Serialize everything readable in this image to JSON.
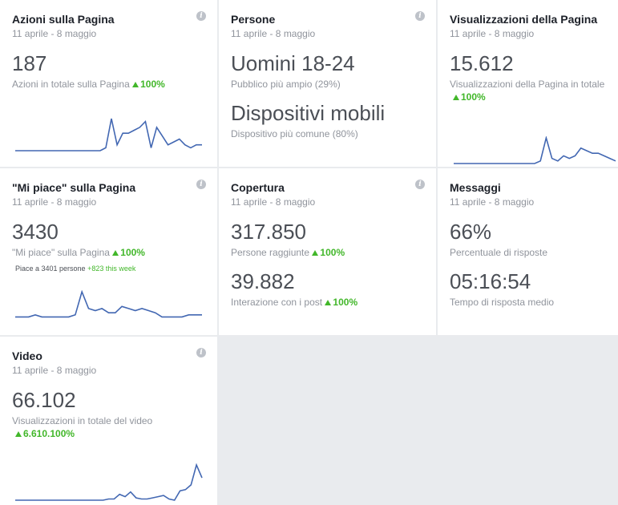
{
  "colors": {
    "accent": "#4267b2",
    "positive": "#42b72a",
    "muted": "#90949c",
    "background": "#e9ebee"
  },
  "cards": {
    "azioni": {
      "title": "Azioni sulla Pagina",
      "date": "11 aprile - 8 maggio",
      "value": "187",
      "label": "Azioni in totale sulla Pagina",
      "change": "100%",
      "icon": "info-icon",
      "sparkline": [
        0,
        0,
        0,
        0,
        0,
        0,
        0,
        0,
        0,
        0,
        0,
        0,
        0,
        0,
        0,
        0,
        1,
        11,
        2,
        6,
        6,
        7,
        8,
        10,
        1,
        8,
        5,
        2,
        3,
        4,
        2,
        1,
        2,
        2
      ]
    },
    "persone": {
      "title": "Persone",
      "date": "11 aprile - 8 maggio",
      "value1": "Uomini 18-24",
      "label1": "Pubblico più ampio (29%)",
      "value2": "Dispositivi mobili",
      "label2": "Dispositivo più comune (80%)",
      "icon": "info-icon"
    },
    "visualizzazioni": {
      "title": "Visualizzazioni della Pagina",
      "date": "11 aprile - 8 maggio",
      "value": "15.612",
      "label": "Visualizzazioni della Pagina in totale",
      "change": "100%",
      "sparkline": [
        0,
        0,
        0,
        0,
        0,
        0,
        0,
        0,
        0,
        0,
        0,
        0,
        0,
        0,
        0,
        1,
        10,
        2,
        1,
        3,
        2,
        3,
        6,
        5,
        4,
        4,
        3,
        2,
        1
      ]
    },
    "mipiace": {
      "title": "\"Mi piace\" sulla Pagina",
      "date": "11 aprile - 8 maggio",
      "value": "3430",
      "label": "\"Mi piace\" sulla Pagina",
      "change": "100%",
      "note": "Piace a 3401 persone",
      "note_week": "+823 this week",
      "icon": "info-icon",
      "sparkline": [
        1,
        1,
        1,
        2,
        1,
        1,
        1,
        1,
        1,
        2,
        13,
        5,
        4,
        5,
        3,
        3,
        6,
        5,
        4,
        5,
        4,
        3,
        1,
        1,
        1,
        1,
        2,
        2,
        2
      ]
    },
    "copertura": {
      "title": "Copertura",
      "date": "11 aprile - 8 maggio",
      "value1": "317.850",
      "label1": "Persone raggiunte",
      "change1": "100%",
      "value2": "39.882",
      "label2": "Interazione con i post",
      "change2": "100%",
      "icon": "info-icon"
    },
    "messaggi": {
      "title": "Messaggi",
      "date": "11 aprile - 8 maggio",
      "value1": "66%",
      "label1": "Percentuale di risposte",
      "value2": "05:16:54",
      "label2": "Tempo di risposta medio"
    },
    "video": {
      "title": "Video",
      "date": "11 aprile - 8 maggio",
      "value": "66.102",
      "label": "Visualizzazioni in totale del video",
      "change": "6.610.100%",
      "icon": "info-icon",
      "sparkline": [
        0,
        0,
        0,
        0,
        0,
        0,
        0,
        0,
        0,
        0,
        0,
        0,
        0,
        0,
        0,
        0,
        0,
        1,
        1,
        5,
        3,
        7,
        2,
        1,
        1,
        2,
        3,
        4,
        1,
        0,
        8,
        9,
        13,
        30,
        19
      ]
    }
  },
  "chart_data": [
    {
      "type": "line",
      "series": [
        {
          "values": [
            0,
            0,
            0,
            0,
            0,
            0,
            0,
            0,
            0,
            0,
            0,
            0,
            0,
            0,
            0,
            0,
            1,
            11,
            2,
            6,
            6,
            7,
            8,
            10,
            1,
            8,
            5,
            2,
            3,
            4,
            2,
            1,
            2,
            2
          ]
        }
      ]
    },
    {
      "type": "line",
      "series": [
        {
          "values": [
            0,
            0,
            0,
            0,
            0,
            0,
            0,
            0,
            0,
            0,
            0,
            0,
            0,
            0,
            0,
            1,
            10,
            2,
            1,
            3,
            2,
            3,
            6,
            5,
            4,
            4,
            3,
            2,
            1
          ]
        }
      ]
    },
    {
      "type": "line",
      "series": [
        {
          "values": [
            1,
            1,
            1,
            2,
            1,
            1,
            1,
            1,
            1,
            2,
            13,
            5,
            4,
            5,
            3,
            3,
            6,
            5,
            4,
            5,
            4,
            3,
            1,
            1,
            1,
            1,
            2,
            2,
            2
          ]
        }
      ]
    },
    {
      "type": "line",
      "series": [
        {
          "values": [
            0,
            0,
            0,
            0,
            0,
            0,
            0,
            0,
            0,
            0,
            0,
            0,
            0,
            0,
            0,
            0,
            0,
            1,
            1,
            5,
            3,
            7,
            2,
            1,
            1,
            2,
            3,
            4,
            1,
            0,
            8,
            9,
            13,
            30,
            19
          ]
        }
      ]
    }
  ]
}
